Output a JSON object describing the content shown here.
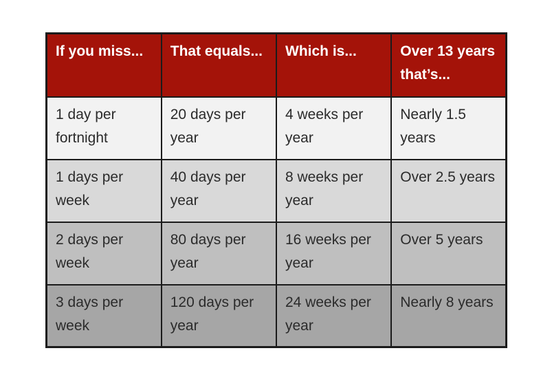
{
  "table": {
    "headers": [
      "If you miss...",
      "That equals...",
      "Which is...",
      "Over 13 years that’s..."
    ],
    "rows": [
      [
        "1 day per fortnight",
        "20 days per year",
        "4 weeks per year",
        "Nearly 1.5 years"
      ],
      [
        "1 days per week",
        "40 days per year",
        "8 weeks per year",
        "Over 2.5 years"
      ],
      [
        "2 days per week",
        "80 days per year",
        "16 weeks per year",
        "Over 5 years"
      ],
      [
        "3 days per week",
        "120 days per year",
        "24 weeks per year",
        "Nearly 8 years"
      ]
    ],
    "row_backgrounds": [
      "#F2F2F2",
      "#D9D9D9",
      "#BFBFBF",
      "#A6A6A6"
    ],
    "colors": {
      "header_bg": "#A41309",
      "header_text": "#FFFFFF",
      "border": "#1B1B1B",
      "cell_text": "#2B2B2B"
    }
  }
}
